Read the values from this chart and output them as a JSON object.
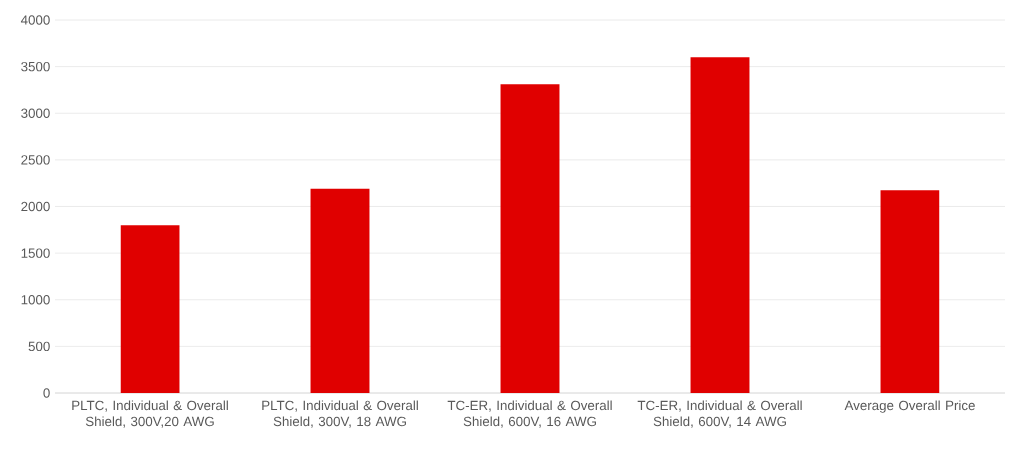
{
  "chart_data": {
    "type": "bar",
    "categories": [
      "PLTC, Individual & Overall Shield, 300V,20 AWG",
      "PLTC, Individual & Overall Shield, 300V, 18 AWG",
      "TC-ER, Individual & Overall Shield, 600V, 16 AWG",
      "TC-ER, Individual & Overall Shield, 600V, 14 AWG",
      "Average Overall Price"
    ],
    "values": [
      1800,
      2190,
      3310,
      3600,
      2175
    ],
    "color": "#e00000",
    "ylim": [
      0,
      4000
    ],
    "yticks": [
      0,
      500,
      1000,
      1500,
      2000,
      2500,
      3000,
      3500,
      4000
    ],
    "grid": "y"
  }
}
